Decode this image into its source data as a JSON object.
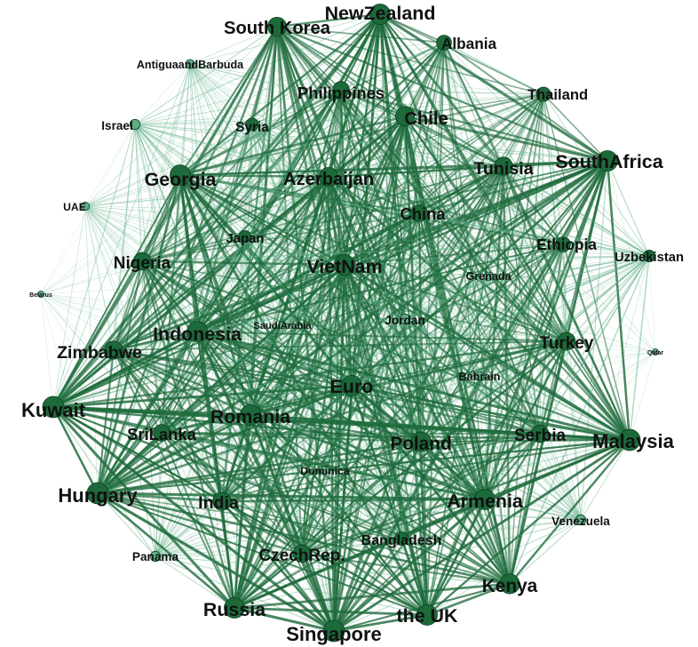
{
  "palette": {
    "edge_dark": "#1f6b3c",
    "edge_light": "#5fae87",
    "node_fill": "#1c6a3a",
    "node_stroke": "#0e3d20",
    "label": "#111111"
  },
  "nodes": [
    {
      "id": "newzealand",
      "label": "NewZealand",
      "weight": 0.95
    },
    {
      "id": "southkorea",
      "label": "South Korea",
      "weight": 0.85
    },
    {
      "id": "albania",
      "label": "Albania",
      "weight": 0.6
    },
    {
      "id": "antigua",
      "label": "AntiguaandBarbuda",
      "weight": 0.22
    },
    {
      "id": "thailand",
      "label": "Thailand",
      "weight": 0.55
    },
    {
      "id": "philippines",
      "label": "Philippines",
      "weight": 0.7
    },
    {
      "id": "israel",
      "label": "Israel",
      "weight": 0.3
    },
    {
      "id": "syria",
      "label": "Syria",
      "weight": 0.45
    },
    {
      "id": "chile",
      "label": "Chile",
      "weight": 0.85
    },
    {
      "id": "southafrica",
      "label": "SouthAfrica",
      "weight": 0.95
    },
    {
      "id": "tunisia",
      "label": "Tunisia",
      "weight": 0.8
    },
    {
      "id": "georgia",
      "label": "Georgia",
      "weight": 0.95
    },
    {
      "id": "azerbaijan",
      "label": "Azerbaijan",
      "weight": 0.85
    },
    {
      "id": "uae",
      "label": "UAE",
      "weight": 0.18
    },
    {
      "id": "china",
      "label": "China",
      "weight": 0.7
    },
    {
      "id": "japan",
      "label": "Japan",
      "weight": 0.4
    },
    {
      "id": "ethiopia",
      "label": "Ethiopia",
      "weight": 0.6
    },
    {
      "id": "uzbekistan",
      "label": "Uzbekistan",
      "weight": 0.4
    },
    {
      "id": "nigeria",
      "label": "Nigeria",
      "weight": 0.75
    },
    {
      "id": "vietnam",
      "label": "VietNam",
      "weight": 0.95
    },
    {
      "id": "grenada",
      "label": "Grenada",
      "weight": 0.22
    },
    {
      "id": "belarus",
      "label": "Belarus",
      "weight": 0.05
    },
    {
      "id": "saudiarabia",
      "label": "SaudiArabia",
      "weight": 0.1
    },
    {
      "id": "jordan",
      "label": "Jordan",
      "weight": 0.3
    },
    {
      "id": "indonesia",
      "label": "Indonesia",
      "weight": 0.95
    },
    {
      "id": "zimbabwe",
      "label": "Zimbabwe",
      "weight": 0.8
    },
    {
      "id": "turkey",
      "label": "Turkey",
      "weight": 0.75
    },
    {
      "id": "qatar",
      "label": "Qatar",
      "weight": 0.05
    },
    {
      "id": "bahrain",
      "label": "Bahrain",
      "weight": 0.22
    },
    {
      "id": "euro",
      "label": "Euro",
      "weight": 0.95
    },
    {
      "id": "kuwait",
      "label": "Kuwait",
      "weight": 1.0
    },
    {
      "id": "romania",
      "label": "Romania",
      "weight": 0.95
    },
    {
      "id": "srilanka",
      "label": "SriLanka",
      "weight": 0.7
    },
    {
      "id": "poland",
      "label": "Poland",
      "weight": 0.9
    },
    {
      "id": "serbia",
      "label": "Serbia",
      "weight": 0.75
    },
    {
      "id": "malaysia",
      "label": "Malaysia",
      "weight": 1.0
    },
    {
      "id": "dominica",
      "label": "Dominica",
      "weight": 0.2
    },
    {
      "id": "hungary",
      "label": "Hungary",
      "weight": 1.0
    },
    {
      "id": "india",
      "label": "India",
      "weight": 0.8
    },
    {
      "id": "armenia",
      "label": "Armenia",
      "weight": 0.95
    },
    {
      "id": "venezuela",
      "label": "Venezuela",
      "weight": 0.3
    },
    {
      "id": "bangladesh",
      "label": "Bangladesh",
      "weight": 0.5
    },
    {
      "id": "panama",
      "label": "Panama",
      "weight": 0.3
    },
    {
      "id": "czechrep",
      "label": "CzechRep.",
      "weight": 0.75
    },
    {
      "id": "kenya",
      "label": "Kenya",
      "weight": 0.9
    },
    {
      "id": "russia",
      "label": "Russia",
      "weight": 0.95
    },
    {
      "id": "theuk",
      "label": "the UK",
      "weight": 0.95
    },
    {
      "id": "singapore",
      "label": "Singapore",
      "weight": 1.0
    }
  ]
}
